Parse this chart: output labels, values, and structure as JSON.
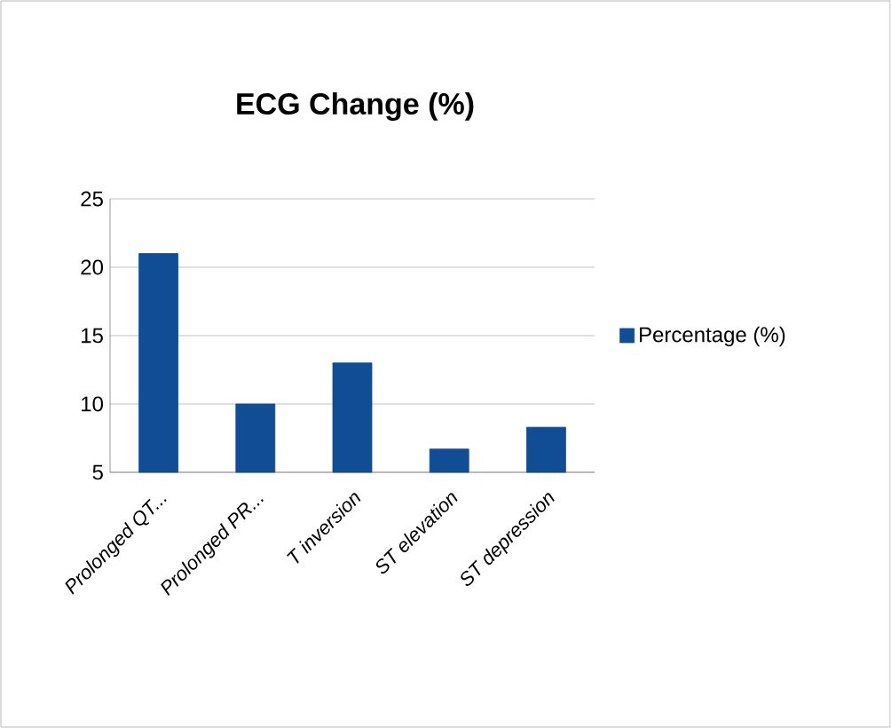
{
  "chart_data": {
    "type": "bar",
    "title": "ECG Change (%)",
    "categories": [
      "Prolonged QT...",
      "Prolonged PR...",
      "T inversion",
      "ST elevation",
      "ST depression"
    ],
    "series": [
      {
        "name": "Percentage (%)",
        "color": "#114d94",
        "values": [
          21,
          10,
          13,
          6.7,
          8.3
        ]
      }
    ],
    "ylim": [
      5,
      25
    ],
    "yticks": [
      5,
      10,
      15,
      20,
      25
    ],
    "grid": "y",
    "legend": "right"
  }
}
